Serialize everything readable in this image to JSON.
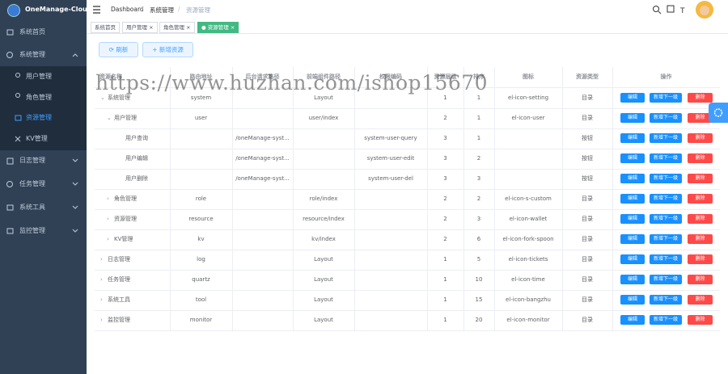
{
  "sidebar": {
    "logo": "OneManage-Cloud",
    "items": [
      {
        "label": "系统首页"
      },
      {
        "label": "系统管理",
        "children": [
          "用户管理",
          "角色管理",
          "资源管理",
          "KV管理"
        ]
      },
      {
        "label": "日志管理"
      },
      {
        "label": "任务管理"
      },
      {
        "label": "系统工具"
      },
      {
        "label": "监控管理"
      }
    ]
  },
  "breadcrumb": [
    "Dashboard",
    "系统管理",
    "资源管理"
  ],
  "tags": [
    "系统首页",
    "用户管理",
    "角色管理",
    "资源管理"
  ],
  "toolbar": {
    "refresh": "刷新",
    "add": "新增资源"
  },
  "table": {
    "headers": [
      "资源名称",
      "路由地址",
      "后台请求路径",
      "前端组件路径",
      "权限编码",
      "资源层级",
      "排序",
      "图标",
      "资源类型",
      "操作"
    ],
    "actions": [
      "编辑",
      "新增下一级",
      "删除"
    ],
    "rows": [
      {
        "name": "系统管理",
        "route": "system",
        "component": "Layout",
        "level": 1,
        "sort": 1,
        "icon": "el-icon-setting",
        "type": "目录"
      },
      {
        "name": "用户管理",
        "route": "user",
        "component": "user/index",
        "level": 2,
        "sort": 1,
        "icon": "el-icon-user",
        "type": "目录"
      },
      {
        "name": "用户查询",
        "api": "/oneManage-syst...",
        "code": "system-user-query",
        "level": 3,
        "sort": 1,
        "type": "按钮"
      },
      {
        "name": "用户编辑",
        "api": "/oneManage-syst...",
        "code": "system-user-edit",
        "level": 3,
        "sort": 2,
        "type": "按钮"
      },
      {
        "name": "用户删除",
        "api": "/oneManage-syst...",
        "code": "system-user-del",
        "level": 3,
        "sort": 3,
        "type": "按钮"
      },
      {
        "name": "角色管理",
        "route": "role",
        "component": "role/index",
        "level": 2,
        "sort": 2,
        "icon": "el-icon-s-custom",
        "type": "目录"
      },
      {
        "name": "资源管理",
        "route": "resource",
        "component": "resource/index",
        "level": 2,
        "sort": 3,
        "icon": "el-icon-wallet",
        "type": "目录"
      },
      {
        "name": "KV管理",
        "route": "kv",
        "component": "kv/index",
        "level": 2,
        "sort": 6,
        "icon": "el-icon-fork-spoon",
        "type": "目录"
      },
      {
        "name": "日志管理",
        "route": "log",
        "component": "Layout",
        "level": 1,
        "sort": 5,
        "icon": "el-icon-tickets",
        "type": "目录"
      },
      {
        "name": "任务管理",
        "route": "quartz",
        "component": "Layout",
        "level": 1,
        "sort": 10,
        "icon": "el-icon-time",
        "type": "目录"
      },
      {
        "name": "系统工具",
        "route": "tool",
        "component": "Layout",
        "level": 1,
        "sort": 15,
        "icon": "el-icon-bangzhu",
        "type": "目录"
      },
      {
        "name": "监控管理",
        "route": "monitor",
        "component": "Layout",
        "level": 1,
        "sort": 20,
        "icon": "el-icon-monitor",
        "type": "目录"
      }
    ]
  },
  "watermark": "https://www.huzhan.com/ishop15670"
}
